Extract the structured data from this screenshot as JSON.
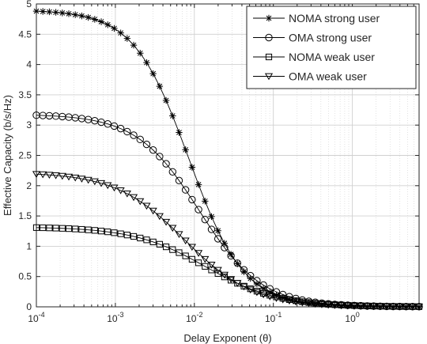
{
  "chart_data": {
    "type": "line",
    "xscale": "log",
    "xlim": [
      0.0001,
      7
    ],
    "ylim": [
      0,
      5
    ],
    "xlabel": "Delay Exponent (θ)",
    "ylabel": "Effective Capacity (b/s/Hz)",
    "grid": true,
    "legend_position": "top-right",
    "x_tick_labels": [
      {
        "value": 0.0001,
        "base": "10",
        "exp": "-4"
      },
      {
        "value": 0.001,
        "base": "10",
        "exp": "-3"
      },
      {
        "value": 0.01,
        "base": "10",
        "exp": "-2"
      },
      {
        "value": 0.1,
        "base": "10",
        "exp": "-1"
      },
      {
        "value": 1,
        "base": "10",
        "exp": "0"
      }
    ],
    "y_ticks": [
      0,
      0.5,
      1,
      1.5,
      2,
      2.5,
      3,
      3.5,
      4,
      4.5,
      5
    ],
    "y_tick_labels": [
      "0",
      "0.5",
      "1",
      "1.5",
      "2",
      "2.5",
      "3",
      "3.5",
      "4",
      "4.5",
      "5"
    ],
    "colors": {
      "line": "#000000",
      "grid": "#d0d0d0",
      "axis": "#262626"
    },
    "series": [
      {
        "name": "NOMA strong user",
        "marker": "asterisk",
        "cap": 4.9,
        "theta_half": 0.0085,
        "slope": 1.25
      },
      {
        "name": "OMA strong user",
        "marker": "circle",
        "cap": 3.18,
        "theta_half": 0.0115,
        "slope": 1.1
      },
      {
        "name": "NOMA weak user",
        "marker": "square",
        "cap": 1.32,
        "theta_half": 0.014,
        "slope": 0.95
      },
      {
        "name": "OMA weak user",
        "marker": "triangle-down",
        "cap": 2.22,
        "theta_half": 0.0075,
        "slope": 1.0
      }
    ]
  }
}
